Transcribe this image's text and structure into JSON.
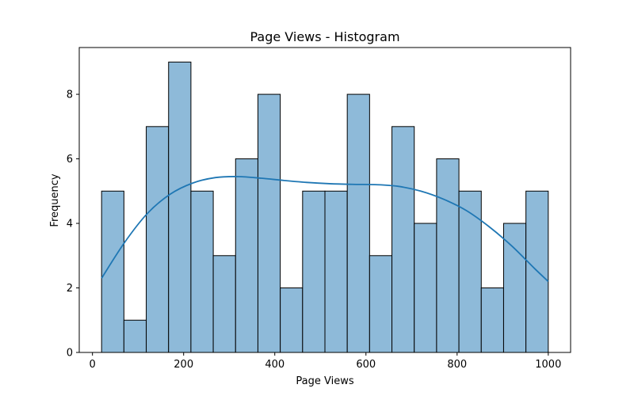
{
  "chart_data": {
    "type": "bar",
    "title": "Page Views - Histogram",
    "xlabel": "Page Views",
    "ylabel": "Frequency",
    "bins": [
      [
        20,
        69
      ],
      [
        69,
        118
      ],
      [
        118,
        167
      ],
      [
        167,
        216
      ],
      [
        216,
        265
      ],
      [
        265,
        314
      ],
      [
        314,
        363
      ],
      [
        363,
        412
      ],
      [
        412,
        461
      ],
      [
        461,
        510
      ],
      [
        510,
        559
      ],
      [
        559,
        608
      ],
      [
        608,
        657
      ],
      [
        657,
        706
      ],
      [
        706,
        755
      ],
      [
        755,
        804
      ],
      [
        804,
        853
      ],
      [
        853,
        902
      ],
      [
        902,
        951
      ],
      [
        951,
        1000
      ]
    ],
    "values": [
      5,
      1,
      7,
      9,
      5,
      3,
      6,
      8,
      2,
      5,
      5,
      8,
      3,
      7,
      4,
      6,
      5,
      2,
      4,
      5
    ],
    "kde": {
      "x": [
        20,
        70,
        120,
        170,
        220,
        270,
        320,
        370,
        420,
        470,
        520,
        570,
        620,
        670,
        720,
        770,
        820,
        870,
        920,
        970,
        1000
      ],
      "y": [
        2.3,
        3.4,
        4.3,
        4.9,
        5.25,
        5.42,
        5.45,
        5.4,
        5.33,
        5.27,
        5.23,
        5.21,
        5.2,
        5.15,
        5.0,
        4.75,
        4.4,
        3.9,
        3.3,
        2.6,
        2.2
      ]
    },
    "xlim": [
      -29,
      1049
    ],
    "ylim": [
      0,
      9.45
    ],
    "xticks": [
      0,
      200,
      400,
      600,
      800,
      1000
    ],
    "yticks": [
      0,
      2,
      4,
      6,
      8
    ],
    "bar_color": "#8ebad9",
    "bar_edge_color": "#000000",
    "line_color": "#1f77b4",
    "grid": false
  }
}
